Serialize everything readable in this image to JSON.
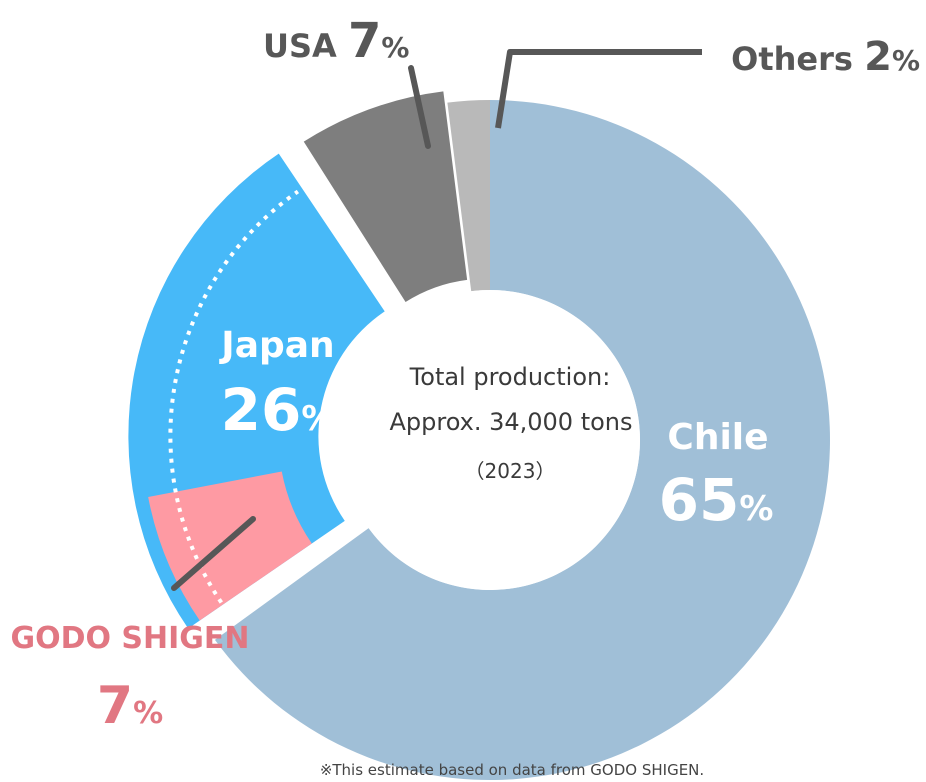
{
  "chart_data": {
    "type": "pie",
    "style": "exploded-donut",
    "slices": [
      {
        "name": "Chile",
        "value": 65,
        "unit": "%",
        "color": "#a0bfd7",
        "label_color": "#ffffff"
      },
      {
        "name": "Japan",
        "value": 26,
        "unit": "%",
        "color": "#47b9f8",
        "label_color": "#ffffff",
        "sub_slice": {
          "name": "GODO SHIGEN",
          "value": 7,
          "unit": "%",
          "color": "#fe9aa3",
          "label_color": "#e17782"
        }
      },
      {
        "name": "USA",
        "value": 7,
        "unit": "%",
        "color": "#7e7e7e",
        "label_color": "#575757"
      },
      {
        "name": "Others",
        "value": 2,
        "unit": "%",
        "color": "#b9b9b9",
        "label_color": "#575757"
      }
    ],
    "center": {
      "line1": "Total production:",
      "line2": "Approx. 34,000 tons",
      "line3": "（2023）"
    },
    "footnote": "※This estimate based on data from GODO SHIGEN."
  }
}
